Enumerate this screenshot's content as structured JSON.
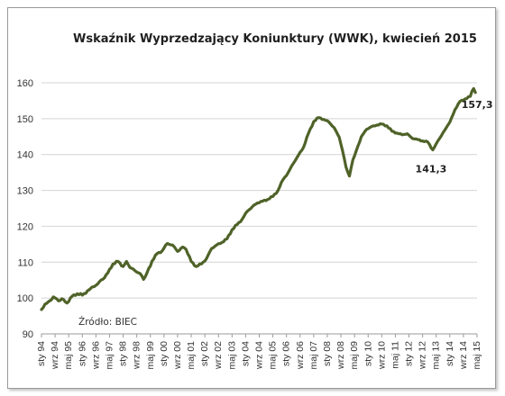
{
  "chart_data": {
    "type": "line",
    "title": "Wskaźnik Wyprzedzający Koniunktury (WWK), kwiecień 2015",
    "source": "Źródło: BIEC",
    "xlabel": "",
    "ylabel": "",
    "ylim": [
      90,
      160
    ],
    "y_ticks": [
      90,
      100,
      110,
      120,
      130,
      140,
      150,
      160
    ],
    "grid": "horizontal",
    "line_color": "#4f6228",
    "x_tick_labels": [
      "sty 94",
      "wrz 94",
      "maj 95",
      "sty 96",
      "wrz 96",
      "maj 97",
      "sty 98",
      "wrz 98",
      "maj 99",
      "sty 00",
      "wrz 00",
      "maj 01",
      "sty 02",
      "wrz 02",
      "maj 03",
      "sty 04",
      "wrz 04",
      "maj 05",
      "sty 06",
      "wrz 06",
      "maj 07",
      "sty 08",
      "wrz 08",
      "maj 09",
      "sty 10",
      "wrz 10",
      "maj 11",
      "sty 12",
      "wrz 12",
      "maj 13",
      "sty 14",
      "wrz 14",
      "maj 15"
    ],
    "series": [
      {
        "name": "WWK",
        "x": [
          "1994-01",
          "1994-04",
          "1994-08",
          "1994-11",
          "1995-01",
          "1995-04",
          "1995-07",
          "1995-10",
          "1996-01",
          "1996-04",
          "1996-08",
          "1996-11",
          "1997-01",
          "1997-04",
          "1997-07",
          "1997-10",
          "1998-01",
          "1998-03",
          "1998-05",
          "1998-08",
          "1998-11",
          "1999-01",
          "1999-03",
          "1999-06",
          "1999-09",
          "1999-12",
          "2000-03",
          "2000-06",
          "2000-09",
          "2000-12",
          "2001-02",
          "2001-05",
          "2001-08",
          "2001-11",
          "2002-02",
          "2002-05",
          "2002-08",
          "2002-11",
          "2003-02",
          "2003-05",
          "2003-08",
          "2003-11",
          "2004-02",
          "2004-05",
          "2004-08",
          "2004-11",
          "2005-02",
          "2005-05",
          "2005-08",
          "2005-11",
          "2006-02",
          "2006-05",
          "2006-08",
          "2006-11",
          "2007-02",
          "2007-05",
          "2007-08",
          "2007-11",
          "2008-02",
          "2008-05",
          "2008-08",
          "2008-10",
          "2008-12",
          "2009-02",
          "2009-04",
          "2009-06",
          "2009-09",
          "2009-12",
          "2010-03",
          "2010-06",
          "2010-09",
          "2010-12",
          "2011-03",
          "2011-06",
          "2011-09",
          "2011-12",
          "2012-03",
          "2012-06",
          "2012-09",
          "2012-12",
          "2013-03",
          "2013-05",
          "2013-07",
          "2013-10",
          "2014-01",
          "2014-04",
          "2014-07",
          "2014-10",
          "2015-01",
          "2015-02",
          "2015-03",
          "2015-04"
        ],
        "values": [
          96.8,
          98.5,
          100.3,
          99.2,
          99.8,
          98.6,
          100.5,
          101.2,
          100.8,
          102.0,
          103.2,
          104.5,
          105.2,
          107.0,
          109.5,
          110.2,
          108.8,
          110.2,
          108.5,
          107.6,
          106.8,
          105.2,
          107.0,
          110.3,
          112.4,
          113.2,
          115.2,
          114.8,
          113.0,
          114.2,
          113.5,
          110.2,
          108.8,
          109.5,
          111.0,
          113.8,
          114.8,
          115.5,
          116.5,
          119.0,
          120.5,
          122.0,
          124.2,
          125.5,
          126.5,
          127.0,
          127.5,
          128.3,
          130.0,
          133.0,
          135.0,
          137.5,
          139.8,
          142.0,
          146.0,
          149.2,
          150.3,
          149.8,
          149.0,
          147.5,
          144.8,
          141.0,
          136.5,
          134.0,
          138.5,
          141.0,
          145.0,
          147.0,
          147.8,
          148.2,
          148.5,
          148.0,
          146.5,
          146.0,
          145.5,
          145.8,
          144.5,
          144.2,
          143.8,
          143.5,
          141.3,
          143.0,
          144.5,
          146.8,
          149.0,
          152.5,
          154.8,
          155.5,
          156.2,
          157.6,
          158.4,
          157.3
        ]
      }
    ],
    "annotations": [
      {
        "x": "2013-03",
        "y": 141.3,
        "text": "141,3"
      },
      {
        "x": "2015-04",
        "y": 157.3,
        "text": "157,3"
      }
    ]
  }
}
